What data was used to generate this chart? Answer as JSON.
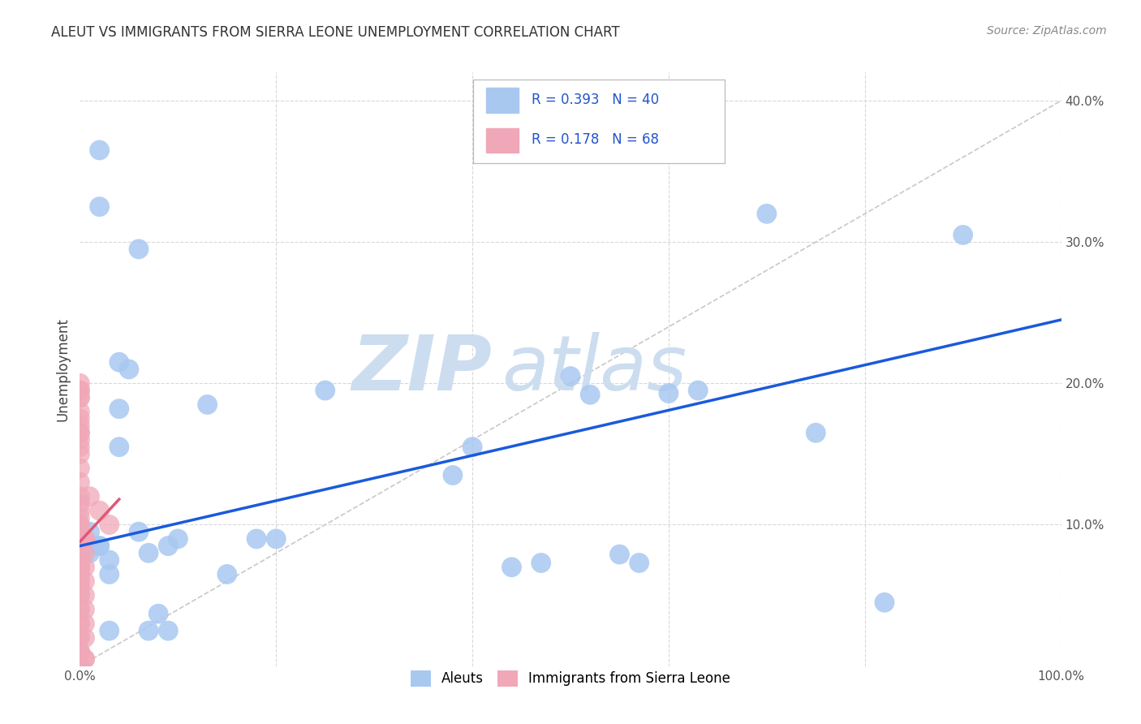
{
  "title": "ALEUT VS IMMIGRANTS FROM SIERRA LEONE UNEMPLOYMENT CORRELATION CHART",
  "source": "Source: ZipAtlas.com",
  "ylabel": "Unemployment",
  "xlim": [
    0,
    1.0
  ],
  "ylim": [
    0,
    0.42
  ],
  "legend_R_blue": "0.393",
  "legend_N_blue": "40",
  "legend_R_pink": "0.178",
  "legend_N_pink": "68",
  "watermark_zip": "ZIP",
  "watermark_atlas": "atlas",
  "blue_color": "#a8c8f0",
  "pink_color": "#f0a8b8",
  "blue_line_color": "#1a5adb",
  "pink_line_color": "#e05878",
  "diagonal_color": "#c8c8c8",
  "grid_color": "#d8d8d8",
  "blue_line_x": [
    0.0,
    1.0
  ],
  "blue_line_y": [
    0.085,
    0.245
  ],
  "pink_line_x": [
    0.0,
    0.04
  ],
  "pink_line_y": [
    0.088,
    0.118
  ],
  "aleuts_x": [
    0.02,
    0.06,
    0.04,
    0.5,
    0.52,
    0.6,
    0.7,
    0.9,
    0.05,
    0.04,
    0.13,
    0.1,
    0.4,
    0.55,
    0.75,
    0.25,
    0.38,
    0.63,
    0.18,
    0.44,
    0.09,
    0.01,
    0.02,
    0.03,
    0.02,
    0.06,
    0.07,
    0.03,
    0.09,
    0.15,
    0.2,
    0.82,
    0.08,
    0.47,
    0.57,
    0.07,
    0.03,
    0.02,
    0.01,
    0.04
  ],
  "aleuts_y": [
    0.365,
    0.295,
    0.215,
    0.205,
    0.192,
    0.193,
    0.32,
    0.305,
    0.21,
    0.155,
    0.185,
    0.09,
    0.155,
    0.079,
    0.165,
    0.195,
    0.135,
    0.195,
    0.09,
    0.07,
    0.085,
    0.095,
    0.085,
    0.075,
    0.085,
    0.095,
    0.08,
    0.025,
    0.025,
    0.065,
    0.09,
    0.045,
    0.037,
    0.073,
    0.073,
    0.025,
    0.065,
    0.325,
    0.08,
    0.182
  ],
  "sl_x": [
    0.0,
    0.0,
    0.0,
    0.0,
    0.0,
    0.0,
    0.0,
    0.0,
    0.0,
    0.0,
    0.0,
    0.0,
    0.0,
    0.0,
    0.0,
    0.0,
    0.0,
    0.0,
    0.0,
    0.0,
    0.0,
    0.0,
    0.0,
    0.0,
    0.0,
    0.0,
    0.0,
    0.0,
    0.0,
    0.0,
    0.0,
    0.0,
    0.0,
    0.0,
    0.0,
    0.0,
    0.0,
    0.0,
    0.0,
    0.0,
    0.0,
    0.0,
    0.0,
    0.0,
    0.0,
    0.0,
    0.0,
    0.0,
    0.0,
    0.0,
    0.0,
    0.0,
    0.0,
    0.0,
    0.01,
    0.02,
    0.005,
    0.03,
    0.005,
    0.005,
    0.005,
    0.005,
    0.005,
    0.005,
    0.005,
    0.005,
    0.005,
    0.005
  ],
  "sl_y": [
    0.0,
    0.01,
    0.02,
    0.03,
    0.04,
    0.05,
    0.055,
    0.06,
    0.065,
    0.065,
    0.07,
    0.07,
    0.075,
    0.075,
    0.08,
    0.08,
    0.08,
    0.085,
    0.085,
    0.09,
    0.09,
    0.095,
    0.095,
    0.1,
    0.1,
    0.105,
    0.11,
    0.115,
    0.12,
    0.13,
    0.14,
    0.15,
    0.155,
    0.16,
    0.165,
    0.165,
    0.17,
    0.175,
    0.18,
    0.19,
    0.195,
    0.2,
    0.195,
    0.19,
    0.01,
    0.02,
    0.03,
    0.04,
    0.05,
    0.06,
    0.07,
    0.08,
    0.0,
    0.01,
    0.12,
    0.11,
    0.09,
    0.1,
    0.02,
    0.03,
    0.04,
    0.05,
    0.06,
    0.07,
    0.08,
    0.09,
    0.005,
    0.005
  ]
}
